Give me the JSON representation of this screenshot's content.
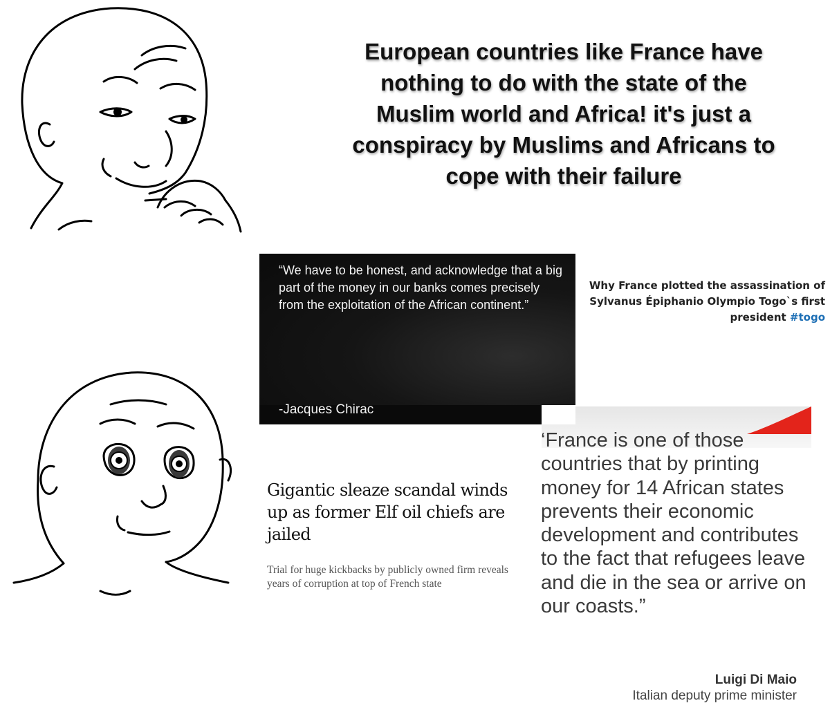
{
  "caption": "European countries like France have nothing to do with the state of the Muslim world and Africa! it's just a conspiracy by Muslims and Africans to cope with their failure",
  "chirac": {
    "quote": "“We have to be honest, and acknowledge that a big part of the money in our banks comes precisely from the exploitation of the African continent.”",
    "author": "-Jacques Chirac"
  },
  "togo": {
    "text": "Why France plotted the assassination of Sylvanus Épiphanio Olympio Togo`s first president",
    "hashtag": "#togo"
  },
  "guardian": {
    "headline": "Gigantic sleaze scandal winds up as former Elf oil chiefs are jailed",
    "subheadline": "Trial for huge kickbacks by publicly owned firm reveals years of corruption at top of French state"
  },
  "dimaio": {
    "quote": "‘France is one of those countries that by printing money for 14 African states prevents their economic development and contributes to the fact that refugees leave and die in the sea or arrive on our coasts.”",
    "name": "Luigi Di Maio",
    "title": "Italian deputy prime minister"
  },
  "colors": {
    "hashtag": "#1d6fb5",
    "accent_red": "#e3241b",
    "dark_card": "#111111"
  },
  "images": {
    "top_wojak": "smug-wojak-drawing",
    "bottom_wojak": "shocked-wojak-drawing"
  }
}
